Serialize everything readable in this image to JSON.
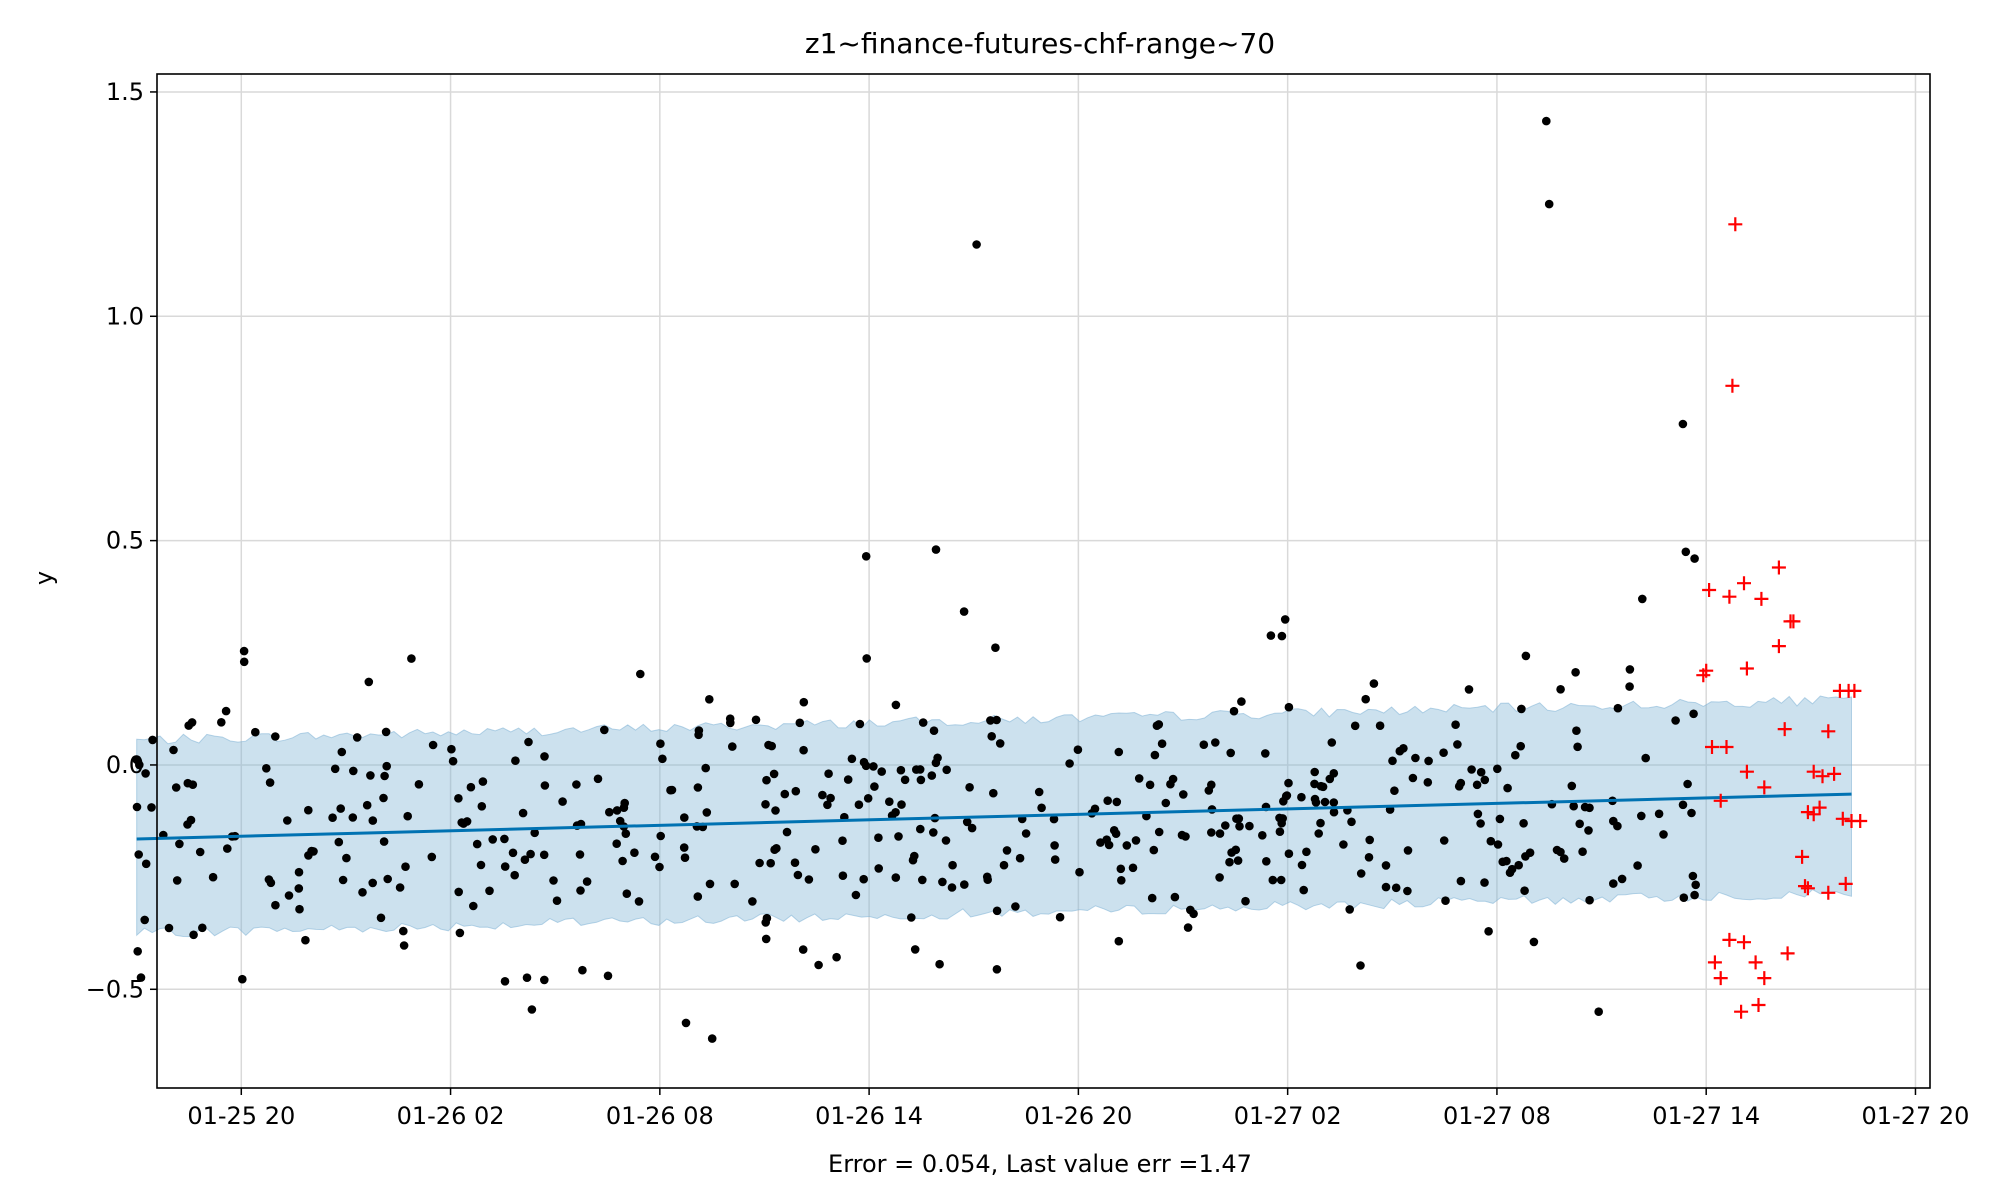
{
  "chart_data": {
    "type": "scatter",
    "title": "z1~finance-futures-chf-range~70",
    "xlabel": "Error = 0.054, Last value err =1.47",
    "ylabel": "y",
    "x_axis_type": "datetime",
    "xlim": [
      "2025-01-25 17:35",
      "2025-01-27 20:25"
    ],
    "ylim": [
      -0.72,
      1.54
    ],
    "x_ticks": [
      {
        "t": "2025-01-25 20:00",
        "label": "01-25 20"
      },
      {
        "t": "2025-01-26 02:00",
        "label": "01-26 02"
      },
      {
        "t": "2025-01-26 08:00",
        "label": "01-26 08"
      },
      {
        "t": "2025-01-26 14:00",
        "label": "01-26 14"
      },
      {
        "t": "2025-01-26 20:00",
        "label": "01-26 20"
      },
      {
        "t": "2025-01-27 02:00",
        "label": "01-27 02"
      },
      {
        "t": "2025-01-27 08:00",
        "label": "01-27 08"
      },
      {
        "t": "2025-01-27 14:00",
        "label": "01-27 14"
      },
      {
        "t": "2025-01-27 20:00",
        "label": "01-27 20"
      }
    ],
    "y_ticks": [
      {
        "v": -0.5,
        "label": "−0.5"
      },
      {
        "v": 0.0,
        "label": "0.0"
      },
      {
        "v": 0.5,
        "label": "0.5"
      },
      {
        "v": 1.0,
        "label": "1.0"
      },
      {
        "v": 1.5,
        "label": "1.5"
      }
    ],
    "grid": true,
    "colors": {
      "observed": "#000000",
      "forecast_line": "#0072B2",
      "band": "#7fb3d5",
      "future": "#ff0000"
    },
    "forecast_line": {
      "start": {
        "t": "2025-01-25 17:00",
        "y": -0.165
      },
      "end": {
        "t": "2025-01-27 18:10",
        "y": -0.065
      }
    },
    "band": {
      "start": "2025-01-25 17:00",
      "end": "2025-01-27 18:10",
      "lower_start": -0.375,
      "upper_start": 0.055,
      "lower_end": -0.285,
      "upper_end": 0.145
    },
    "observed_notable": [
      {
        "t": "2025-01-25 20:05",
        "y": 0.23
      },
      {
        "t": "2025-01-26 17:05",
        "y": 1.16
      },
      {
        "t": "2025-01-26 15:55",
        "y": 0.48
      },
      {
        "t": "2025-01-26 13:55",
        "y": 0.465
      },
      {
        "t": "2025-01-26 09:30",
        "y": -0.61
      },
      {
        "t": "2025-01-26 08:45",
        "y": -0.575
      },
      {
        "t": "2025-01-26 04:20",
        "y": -0.545
      },
      {
        "t": "2025-01-27 09:25",
        "y": 1.435
      },
      {
        "t": "2025-01-27 09:30",
        "y": 1.25
      },
      {
        "t": "2025-01-27 13:20",
        "y": 0.76
      },
      {
        "t": "2025-01-27 13:25",
        "y": 0.475
      },
      {
        "t": "2025-01-27 13:40",
        "y": 0.46
      },
      {
        "t": "2025-01-27 12:10",
        "y": 0.37
      },
      {
        "t": "2025-01-27 10:55",
        "y": -0.55
      }
    ],
    "observed_main": {
      "start": "2025-01-25 17:00",
      "end": "2025-01-27 13:45",
      "count": 470,
      "spread_sd": 0.15,
      "seed": 7
    },
    "future_points": [
      {
        "t": "2025-01-27 14:50",
        "y": 1.205
      },
      {
        "t": "2025-01-27 14:45",
        "y": 0.845
      },
      {
        "t": "2025-01-27 16:05",
        "y": 0.44
      },
      {
        "t": "2025-01-27 15:05",
        "y": 0.405
      },
      {
        "t": "2025-01-27 14:05",
        "y": 0.39
      },
      {
        "t": "2025-01-27 14:40",
        "y": 0.375
      },
      {
        "t": "2025-01-27 15:35",
        "y": 0.37
      },
      {
        "t": "2025-01-27 16:25",
        "y": 0.32
      },
      {
        "t": "2025-01-27 16:30",
        "y": 0.32
      },
      {
        "t": "2025-01-27 16:05",
        "y": 0.265
      },
      {
        "t": "2025-01-27 15:10",
        "y": 0.215
      },
      {
        "t": "2025-01-27 14:00",
        "y": 0.21
      },
      {
        "t": "2025-01-27 13:55",
        "y": 0.2
      },
      {
        "t": "2025-01-27 17:50",
        "y": 0.165
      },
      {
        "t": "2025-01-27 18:05",
        "y": 0.165
      },
      {
        "t": "2025-01-27 18:15",
        "y": 0.165
      },
      {
        "t": "2025-01-27 16:15",
        "y": 0.08
      },
      {
        "t": "2025-01-27 17:30",
        "y": 0.075
      },
      {
        "t": "2025-01-27 14:10",
        "y": 0.04
      },
      {
        "t": "2025-01-27 14:35",
        "y": 0.04
      },
      {
        "t": "2025-01-27 15:10",
        "y": -0.015
      },
      {
        "t": "2025-01-27 17:05",
        "y": -0.015
      },
      {
        "t": "2025-01-27 17:40",
        "y": -0.02
      },
      {
        "t": "2025-01-27 17:20",
        "y": -0.025
      },
      {
        "t": "2025-01-27 15:40",
        "y": -0.05
      },
      {
        "t": "2025-01-27 14:25",
        "y": -0.08
      },
      {
        "t": "2025-01-27 17:15",
        "y": -0.095
      },
      {
        "t": "2025-01-27 16:55",
        "y": -0.105
      },
      {
        "t": "2025-01-27 17:05",
        "y": -0.11
      },
      {
        "t": "2025-01-27 17:55",
        "y": -0.12
      },
      {
        "t": "2025-01-27 18:10",
        "y": -0.125
      },
      {
        "t": "2025-01-27 18:25",
        "y": -0.125
      },
      {
        "t": "2025-01-27 16:45",
        "y": -0.205
      },
      {
        "t": "2025-01-27 18:00",
        "y": -0.265
      },
      {
        "t": "2025-01-27 16:50",
        "y": -0.27
      },
      {
        "t": "2025-01-27 16:55",
        "y": -0.275
      },
      {
        "t": "2025-01-27 17:30",
        "y": -0.285
      },
      {
        "t": "2025-01-27 14:40",
        "y": -0.39
      },
      {
        "t": "2025-01-27 15:05",
        "y": -0.395
      },
      {
        "t": "2025-01-27 16:20",
        "y": -0.42
      },
      {
        "t": "2025-01-27 14:15",
        "y": -0.44
      },
      {
        "t": "2025-01-27 15:25",
        "y": -0.44
      },
      {
        "t": "2025-01-27 14:25",
        "y": -0.475
      },
      {
        "t": "2025-01-27 15:40",
        "y": -0.475
      },
      {
        "t": "2025-01-27 15:30",
        "y": -0.535
      },
      {
        "t": "2025-01-27 15:00",
        "y": -0.55
      }
    ]
  }
}
